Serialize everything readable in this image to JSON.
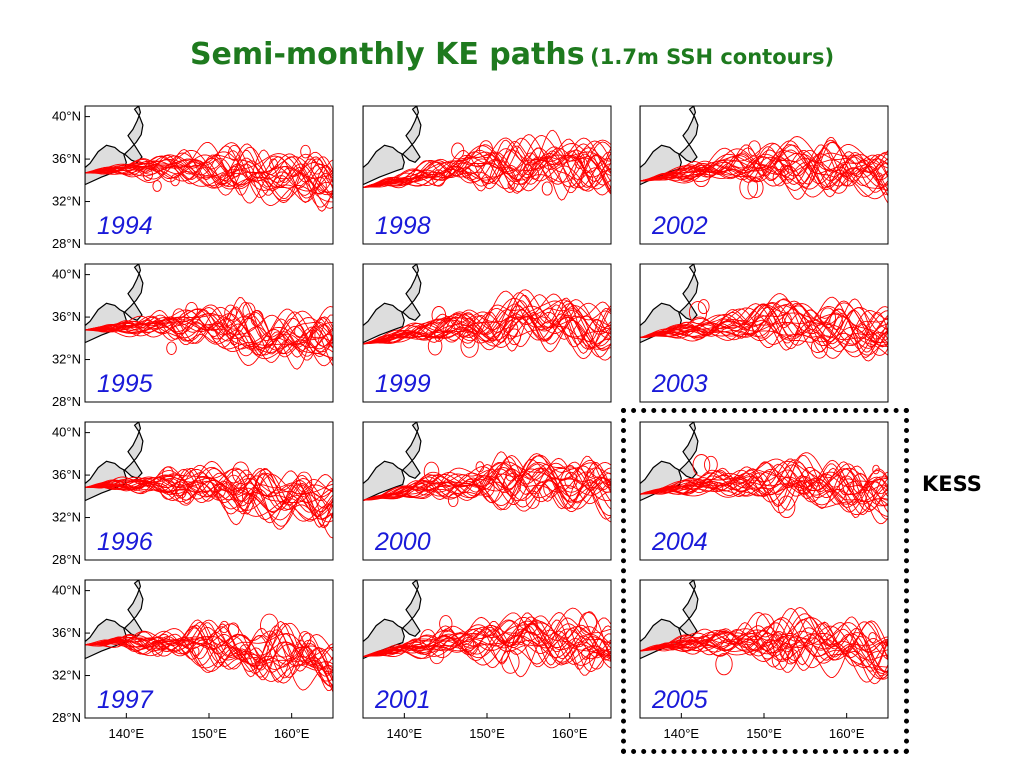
{
  "title": {
    "main": "Semi-monthly KE paths",
    "sub": "(1.7m SSH contours)"
  },
  "annotation": {
    "label": "KESS",
    "years": [
      "2004",
      "2005"
    ]
  },
  "colors": {
    "title": "#1e7a1e",
    "path": "#ff0000",
    "year_label": "#1a1ad9",
    "land": "#dddddd",
    "annotation": "#000000"
  },
  "icons": {
    "land": "japan-coastline"
  },
  "chart_data": {
    "type": "small-multiples-contour-map",
    "title": "Semi-monthly KE paths (1.7m SSH contours)",
    "grid_columns": 3,
    "grid_rows": 4,
    "xlim": [
      135,
      165
    ],
    "ylim": [
      28,
      41
    ],
    "x_ticks": [
      140,
      150,
      160
    ],
    "y_ticks": [
      28,
      32,
      36,
      40
    ],
    "x_tick_labels": [
      "140°E",
      "150°E",
      "160°E"
    ],
    "y_tick_labels": [
      "28°N",
      "32°N",
      "36°N",
      "40°N"
    ],
    "grid": false,
    "panels": [
      {
        "year": "1994",
        "column": 1,
        "row": 1
      },
      {
        "year": "1995",
        "column": 1,
        "row": 2
      },
      {
        "year": "1996",
        "column": 1,
        "row": 3
      },
      {
        "year": "1997",
        "column": 1,
        "row": 4
      },
      {
        "year": "1998",
        "column": 2,
        "row": 1
      },
      {
        "year": "1999",
        "column": 2,
        "row": 2
      },
      {
        "year": "2000",
        "column": 2,
        "row": 3
      },
      {
        "year": "2001",
        "column": 2,
        "row": 4
      },
      {
        "year": "2002",
        "column": 3,
        "row": 1
      },
      {
        "year": "2003",
        "column": 3,
        "row": 2
      },
      {
        "year": "2004",
        "column": 3,
        "row": 3
      },
      {
        "year": "2005",
        "column": 3,
        "row": 4
      }
    ],
    "series": [
      {
        "values": []
      }
    ],
    "coastline": {
      "lon": [
        135.0,
        137.0,
        139.0,
        139.8,
        140.0,
        139.7,
        140.5,
        141.2,
        141.8,
        142.0,
        141.6,
        141.0,
        141.5,
        141.7,
        141.3,
        140.8,
        140.2,
        141.0,
        141.9,
        141.3,
        140.6,
        139.9,
        139.2,
        138.6,
        137.6,
        136.6,
        135.6,
        135.0
      ],
      "lat": [
        33.6,
        34.3,
        34.9,
        35.1,
        35.7,
        36.4,
        37.0,
        37.6,
        38.3,
        39.2,
        40.0,
        40.7,
        41.0,
        40.4,
        39.6,
        38.8,
        38.2,
        37.3,
        36.2,
        35.7,
        35.9,
        36.4,
        36.7,
        37.1,
        37.3,
        36.7,
        35.6,
        35.2
      ]
    }
  }
}
